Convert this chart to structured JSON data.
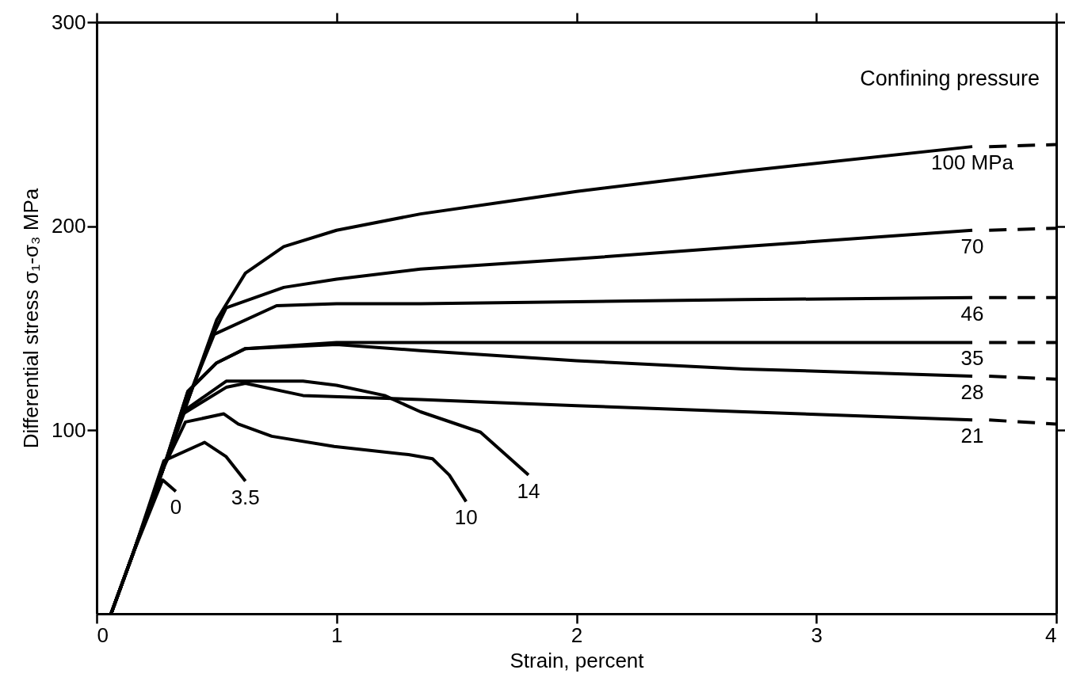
{
  "chart_data": {
    "type": "line",
    "xlabel": "Strain, percent",
    "ylabel": "Differential stress   σ₁-σ₃  MPa",
    "legend_title": "Confining pressure",
    "xlim": [
      0,
      4
    ],
    "ylim": [
      10,
      300
    ],
    "xticks": [
      0,
      1,
      2,
      3,
      4
    ],
    "yticks": [
      100,
      200,
      300
    ],
    "grid": false,
    "line_style": "solid",
    "series": [
      {
        "name": "100 MPa",
        "color": "#000000",
        "x": [
          0.06,
          0.15,
          0.28,
          0.4,
          0.5,
          0.62,
          0.78,
          1.0,
          1.35,
          2.0,
          2.7,
          3.65
        ],
        "values": [
          10,
          39,
          82,
          121,
          154,
          177,
          190,
          198,
          206,
          217,
          227,
          239
        ]
      },
      {
        "name": "70",
        "color": "#000000",
        "x": [
          0.06,
          0.15,
          0.28,
          0.4,
          0.49,
          0.54,
          0.78,
          1.0,
          1.35,
          2.0,
          2.7,
          3.65
        ],
        "values": [
          10,
          39,
          82,
          121,
          148,
          160,
          170,
          174,
          179,
          184,
          190,
          198
        ]
      },
      {
        "name": "46",
        "color": "#000000",
        "x": [
          0.06,
          0.15,
          0.28,
          0.4,
          0.49,
          0.75,
          1.0,
          1.35,
          2.0,
          2.7,
          3.65
        ],
        "values": [
          10,
          39,
          82,
          121,
          147,
          161,
          162,
          162,
          163,
          164,
          165
        ]
      },
      {
        "name": "35",
        "color": "#000000",
        "x": [
          0.06,
          0.15,
          0.28,
          0.38,
          0.5,
          0.62,
          1.0,
          1.35,
          2.0,
          2.7,
          3.65
        ],
        "values": [
          10,
          39,
          82,
          119,
          133,
          140,
          143,
          143,
          143,
          143,
          143
        ]
      },
      {
        "name": "28",
        "color": "#000000",
        "x": [
          0.06,
          0.15,
          0.28,
          0.38,
          0.5,
          0.62,
          1.0,
          1.35,
          2.0,
          2.7,
          3.65
        ],
        "values": [
          10,
          39,
          82,
          119,
          133,
          140,
          142,
          139,
          134,
          130,
          126.5
        ]
      },
      {
        "name": "21",
        "color": "#000000",
        "x": [
          0.06,
          0.15,
          0.28,
          0.36,
          0.54,
          0.62,
          0.86,
          1.11,
          1.35,
          2.0,
          2.7,
          3.65
        ],
        "values": [
          10,
          39,
          82,
          108,
          121,
          123,
          117,
          116,
          115,
          112,
          109,
          105
        ]
      },
      {
        "name": "14",
        "color": "#000000",
        "x": [
          0.06,
          0.15,
          0.28,
          0.37,
          0.54,
          0.86,
          1.0,
          1.2,
          1.35,
          1.6,
          1.8
        ],
        "values": [
          10,
          39,
          82,
          110,
          124,
          124,
          122,
          117,
          109,
          99,
          78
        ]
      },
      {
        "name": "10",
        "color": "#000000",
        "x": [
          0.06,
          0.15,
          0.28,
          0.37,
          0.53,
          0.59,
          0.73,
          0.99,
          1.3,
          1.4,
          1.47,
          1.54
        ],
        "values": [
          10,
          39,
          82,
          104,
          108,
          103,
          97,
          92,
          88,
          86,
          78,
          65
        ]
      },
      {
        "name": "3.5",
        "color": "#000000",
        "x": [
          0.06,
          0.15,
          0.28,
          0.45,
          0.54,
          0.62
        ],
        "values": [
          10,
          39,
          85,
          94,
          87,
          75
        ]
      },
      {
        "name": "0",
        "color": "#000000",
        "x": [
          0.06,
          0.15,
          0.275,
          0.33
        ],
        "values": [
          10,
          39,
          75.6,
          70
        ]
      },
      {
        "color": "#000000",
        "line_style": "dashed",
        "x": [
          3.72,
          4.0
        ],
        "values": [
          239,
          240
        ]
      },
      {
        "color": "#000000",
        "line_style": "dashed",
        "x": [
          3.72,
          4.0
        ],
        "values": [
          198,
          199
        ]
      },
      {
        "color": "#000000",
        "line_style": "dashed",
        "x": [
          3.72,
          4.0
        ],
        "values": [
          165,
          165
        ]
      },
      {
        "color": "#000000",
        "line_style": "dashed",
        "x": [
          3.72,
          4.0
        ],
        "values": [
          143,
          143
        ]
      },
      {
        "color": "#000000",
        "line_style": "dashed",
        "x": [
          3.72,
          4.0
        ],
        "values": [
          126.5,
          125
        ]
      },
      {
        "color": "#000000",
        "line_style": "dashed",
        "x": [
          3.72,
          4.0
        ],
        "values": [
          105,
          103
        ]
      }
    ]
  }
}
